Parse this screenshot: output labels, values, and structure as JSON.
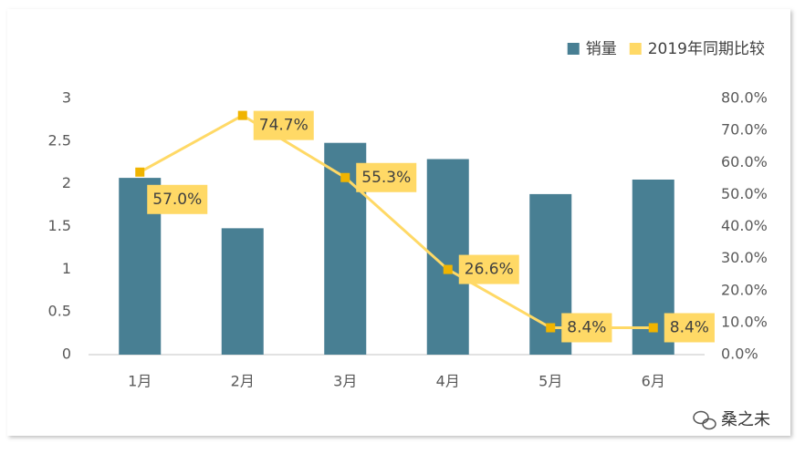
{
  "chart_data": {
    "type": "bar",
    "categories": [
      "1月",
      "2月",
      "3月",
      "4月",
      "5月",
      "6月"
    ],
    "series": [
      {
        "name": "销量",
        "type": "bar",
        "color": "#487f93",
        "values": [
          2.07,
          1.48,
          2.48,
          2.29,
          1.88,
          2.05
        ]
      },
      {
        "name": "2019年同期比较",
        "type": "line",
        "axis": "y2",
        "color": "#ffd966",
        "marker_color": "#f0b400",
        "values": [
          57.0,
          74.7,
          55.3,
          26.6,
          8.4,
          8.4
        ],
        "value_labels": [
          "57.0%",
          "74.7%",
          "55.3%",
          "26.6%",
          "8.4%",
          "8.4%"
        ]
      }
    ],
    "ylim": [
      0,
      3
    ],
    "yticks": [
      0,
      0.5,
      1,
      1.5,
      2,
      2.5,
      3
    ],
    "y2lim": [
      0,
      80
    ],
    "y2ticks": [
      {
        "value": 0,
        "label": "0.0%"
      },
      {
        "value": 10,
        "label": "10.0%"
      },
      {
        "value": 20,
        "label": "20.0%"
      },
      {
        "value": 30,
        "label": "30.0%"
      },
      {
        "value": 40,
        "label": "40.0%"
      },
      {
        "value": 50,
        "label": "50.0%"
      },
      {
        "value": 60,
        "label": "60.0%"
      },
      {
        "value": 70,
        "label": "70.0%"
      },
      {
        "value": 80,
        "label": "80.0%"
      }
    ],
    "legend": "top-right",
    "watermark": "桑之未"
  }
}
